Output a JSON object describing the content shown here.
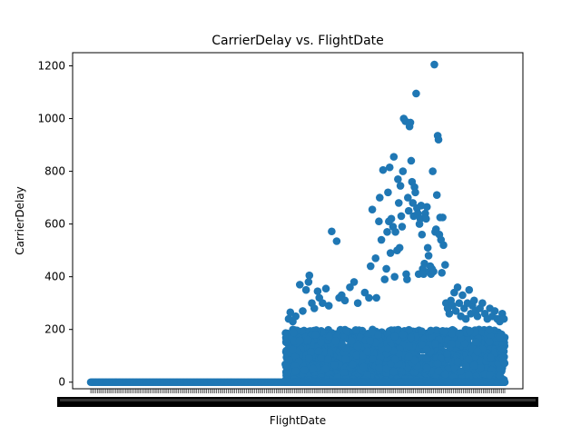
{
  "chart_data": {
    "type": "scatter",
    "title": "CarrierDelay vs. FlightDate",
    "xlabel": "FlightDate",
    "ylabel": "CarrierDelay",
    "ylim": [
      -25,
      1250
    ],
    "yticks": [
      0,
      200,
      400,
      600,
      800,
      1000,
      1200
    ],
    "x_tick_labels_note": "unreadable",
    "grid": false,
    "color": "#1f77b4",
    "x_index_range": [
      0,
      1000
    ],
    "zero_segment": {
      "x_from": 0,
      "x_to": 470,
      "y": 0
    },
    "dense_band": {
      "x_from": 470,
      "x_to": 1000,
      "y_from": 0,
      "y_to": 200
    },
    "outliers": [
      {
        "x": 478,
        "y": 240
      },
      {
        "x": 482,
        "y": 265
      },
      {
        "x": 488,
        "y": 230
      },
      {
        "x": 495,
        "y": 250
      },
      {
        "x": 505,
        "y": 370
      },
      {
        "x": 512,
        "y": 270
      },
      {
        "x": 520,
        "y": 350
      },
      {
        "x": 526,
        "y": 380
      },
      {
        "x": 528,
        "y": 405
      },
      {
        "x": 534,
        "y": 300
      },
      {
        "x": 540,
        "y": 280
      },
      {
        "x": 548,
        "y": 345
      },
      {
        "x": 552,
        "y": 320
      },
      {
        "x": 560,
        "y": 300
      },
      {
        "x": 568,
        "y": 355
      },
      {
        "x": 575,
        "y": 290
      },
      {
        "x": 582,
        "y": 572
      },
      {
        "x": 594,
        "y": 535
      },
      {
        "x": 600,
        "y": 320
      },
      {
        "x": 606,
        "y": 330
      },
      {
        "x": 614,
        "y": 310
      },
      {
        "x": 626,
        "y": 360
      },
      {
        "x": 636,
        "y": 380
      },
      {
        "x": 645,
        "y": 300
      },
      {
        "x": 662,
        "y": 340
      },
      {
        "x": 672,
        "y": 320
      },
      {
        "x": 676,
        "y": 440
      },
      {
        "x": 680,
        "y": 655
      },
      {
        "x": 688,
        "y": 470
      },
      {
        "x": 690,
        "y": 320
      },
      {
        "x": 696,
        "y": 610
      },
      {
        "x": 698,
        "y": 700
      },
      {
        "x": 702,
        "y": 540
      },
      {
        "x": 706,
        "y": 805
      },
      {
        "x": 710,
        "y": 390
      },
      {
        "x": 714,
        "y": 430
      },
      {
        "x": 716,
        "y": 570
      },
      {
        "x": 718,
        "y": 720
      },
      {
        "x": 720,
        "y": 610
      },
      {
        "x": 722,
        "y": 815
      },
      {
        "x": 724,
        "y": 490
      },
      {
        "x": 726,
        "y": 620
      },
      {
        "x": 730,
        "y": 590
      },
      {
        "x": 732,
        "y": 855
      },
      {
        "x": 734,
        "y": 400
      },
      {
        "x": 736,
        "y": 570
      },
      {
        "x": 740,
        "y": 500
      },
      {
        "x": 742,
        "y": 770
      },
      {
        "x": 744,
        "y": 680
      },
      {
        "x": 746,
        "y": 510
      },
      {
        "x": 748,
        "y": 745
      },
      {
        "x": 750,
        "y": 630
      },
      {
        "x": 752,
        "y": 590
      },
      {
        "x": 754,
        "y": 800
      },
      {
        "x": 756,
        "y": 1000
      },
      {
        "x": 760,
        "y": 990
      },
      {
        "x": 762,
        "y": 410
      },
      {
        "x": 764,
        "y": 390
      },
      {
        "x": 766,
        "y": 700
      },
      {
        "x": 768,
        "y": 650
      },
      {
        "x": 770,
        "y": 970
      },
      {
        "x": 772,
        "y": 985
      },
      {
        "x": 774,
        "y": 840
      },
      {
        "x": 776,
        "y": 760
      },
      {
        "x": 778,
        "y": 680
      },
      {
        "x": 780,
        "y": 630
      },
      {
        "x": 782,
        "y": 740
      },
      {
        "x": 784,
        "y": 720
      },
      {
        "x": 786,
        "y": 1095
      },
      {
        "x": 788,
        "y": 660
      },
      {
        "x": 790,
        "y": 640
      },
      {
        "x": 792,
        "y": 410
      },
      {
        "x": 794,
        "y": 600
      },
      {
        "x": 796,
        "y": 620
      },
      {
        "x": 798,
        "y": 670
      },
      {
        "x": 800,
        "y": 560
      },
      {
        "x": 802,
        "y": 430
      },
      {
        "x": 804,
        "y": 410
      },
      {
        "x": 806,
        "y": 450
      },
      {
        "x": 808,
        "y": 640
      },
      {
        "x": 810,
        "y": 620
      },
      {
        "x": 812,
        "y": 665
      },
      {
        "x": 814,
        "y": 510
      },
      {
        "x": 816,
        "y": 480
      },
      {
        "x": 818,
        "y": 420
      },
      {
        "x": 820,
        "y": 440
      },
      {
        "x": 822,
        "y": 410
      },
      {
        "x": 824,
        "y": 430
      },
      {
        "x": 826,
        "y": 800
      },
      {
        "x": 828,
        "y": 420
      },
      {
        "x": 830,
        "y": 1205
      },
      {
        "x": 832,
        "y": 570
      },
      {
        "x": 834,
        "y": 580
      },
      {
        "x": 836,
        "y": 710
      },
      {
        "x": 838,
        "y": 935
      },
      {
        "x": 840,
        "y": 920
      },
      {
        "x": 842,
        "y": 560
      },
      {
        "x": 844,
        "y": 625
      },
      {
        "x": 846,
        "y": 540
      },
      {
        "x": 848,
        "y": 415
      },
      {
        "x": 850,
        "y": 625
      },
      {
        "x": 852,
        "y": 520
      },
      {
        "x": 856,
        "y": 445
      },
      {
        "x": 858,
        "y": 300
      },
      {
        "x": 862,
        "y": 280
      },
      {
        "x": 866,
        "y": 260
      },
      {
        "x": 870,
        "y": 310
      },
      {
        "x": 874,
        "y": 290
      },
      {
        "x": 878,
        "y": 340
      },
      {
        "x": 882,
        "y": 270
      },
      {
        "x": 886,
        "y": 360
      },
      {
        "x": 890,
        "y": 300
      },
      {
        "x": 894,
        "y": 250
      },
      {
        "x": 898,
        "y": 330
      },
      {
        "x": 902,
        "y": 280
      },
      {
        "x": 906,
        "y": 240
      },
      {
        "x": 910,
        "y": 300
      },
      {
        "x": 914,
        "y": 350
      },
      {
        "x": 918,
        "y": 260
      },
      {
        "x": 922,
        "y": 290
      },
      {
        "x": 926,
        "y": 310
      },
      {
        "x": 930,
        "y": 270
      },
      {
        "x": 934,
        "y": 250
      },
      {
        "x": 940,
        "y": 280
      },
      {
        "x": 946,
        "y": 300
      },
      {
        "x": 952,
        "y": 260
      },
      {
        "x": 958,
        "y": 240
      },
      {
        "x": 964,
        "y": 280
      },
      {
        "x": 970,
        "y": 250
      },
      {
        "x": 976,
        "y": 270
      },
      {
        "x": 982,
        "y": 240
      },
      {
        "x": 988,
        "y": 230
      },
      {
        "x": 994,
        "y": 260
      },
      {
        "x": 998,
        "y": 240
      }
    ]
  }
}
